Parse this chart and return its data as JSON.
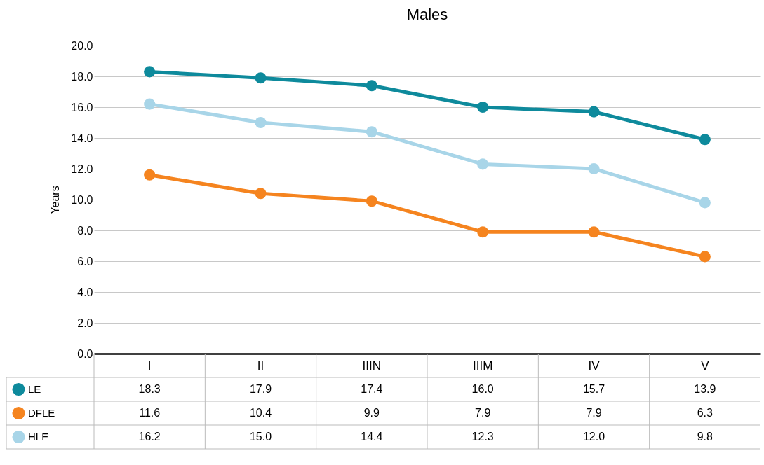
{
  "chart_data": {
    "type": "line",
    "title": "Males",
    "ylabel": "Years",
    "categories": [
      "I",
      "II",
      "IIIN",
      "IIIM",
      "IV",
      "V"
    ],
    "series": [
      {
        "name": "LE",
        "color": "#0e8a9c",
        "values": [
          18.3,
          17.9,
          17.4,
          16.0,
          15.7,
          13.9
        ],
        "value_labels": [
          "18.3",
          "17.9",
          "17.4",
          "16.0",
          "15.7",
          "13.9"
        ]
      },
      {
        "name": "DFLE",
        "color": "#f5841f",
        "values": [
          11.6,
          10.4,
          9.9,
          7.9,
          7.9,
          6.3
        ],
        "value_labels": [
          "11.6",
          "10.4",
          "9.9",
          "7.9",
          "7.9",
          "6.3"
        ]
      },
      {
        "name": "HLE",
        "color": "#a8d5e8",
        "values": [
          16.2,
          15.0,
          14.4,
          12.3,
          12.0,
          9.8
        ],
        "value_labels": [
          "16.2",
          "15.0",
          "14.4",
          "12.3",
          "12.0",
          "9.8"
        ]
      }
    ],
    "ylim": [
      0,
      20
    ],
    "yticks": [
      {
        "value": 0,
        "label": "0.0"
      },
      {
        "value": 2,
        "label": "2.0"
      },
      {
        "value": 4,
        "label": "4.0"
      },
      {
        "value": 6,
        "label": "6.0"
      },
      {
        "value": 8,
        "label": "8.0"
      },
      {
        "value": 10,
        "label": "10.0"
      },
      {
        "value": 12,
        "label": "12.0"
      },
      {
        "value": 14,
        "label": "14.0"
      },
      {
        "value": 16,
        "label": "16.0"
      },
      {
        "value": 18,
        "label": "18.0"
      },
      {
        "value": 20,
        "label": "20.0"
      }
    ],
    "grid": "y",
    "legend": "bottom left",
    "marker": "circle",
    "line_style": "solid"
  }
}
